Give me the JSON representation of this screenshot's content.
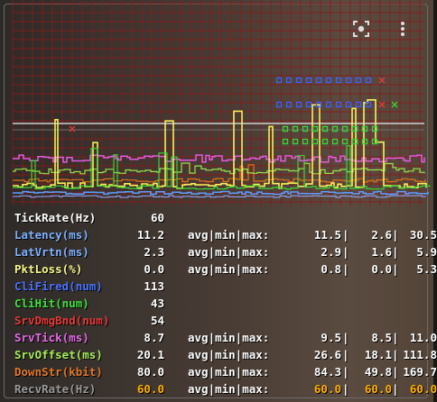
{
  "toolbar": {
    "scan_icon": "lens-scan-icon",
    "menu_icon": "more-vert-icon"
  },
  "graph": {
    "grid_color": "#8b1a1a",
    "series": [
      {
        "name": "tickrate",
        "color": "#f2f2c8"
      },
      {
        "name": "latency",
        "color": "#5aa0ff"
      },
      {
        "name": "pktloss",
        "color": "#f2f25a"
      },
      {
        "name": "srvtick",
        "color": "#e25ae2"
      },
      {
        "name": "srvoffset",
        "color": "#9ae24a"
      },
      {
        "name": "downstr",
        "color": "#e0701a"
      },
      {
        "name": "clihit",
        "color": "#37d637"
      }
    ]
  },
  "stats": [
    {
      "label": "TickRate(Hz)",
      "value": "60",
      "color": "#ffffff",
      "amm": "",
      "avg": "",
      "min": "",
      "max": ""
    },
    {
      "label": "Latency(ms)",
      "value": "11.2",
      "color": "#7fb2ff",
      "amm": "avg|min|max:",
      "avg": "11.5",
      "min": "2.6",
      "max": "30.5"
    },
    {
      "label": "LatVrtn(ms)",
      "value": "2.3",
      "color": "#7fb2ff",
      "amm": "avg|min|max:",
      "avg": "2.9",
      "min": "1.6",
      "max": "5.9"
    },
    {
      "label": "PktLoss(%)",
      "value": "0.0",
      "color": "#f7f78a",
      "amm": "avg|min|max:",
      "avg": "0.8",
      "min": "0.0",
      "max": "5.3"
    },
    {
      "label": "CliFired(num)",
      "value": "113",
      "color": "#4a72ff",
      "amm": "",
      "avg": "",
      "min": "",
      "max": ""
    },
    {
      "label": "CliHit(num)",
      "value": "43",
      "color": "#3fe03f",
      "amm": "",
      "avg": "",
      "min": "",
      "max": ""
    },
    {
      "label": "SrvDmgBnd(num)",
      "value": "54",
      "color": "#e53a3a",
      "amm": "",
      "avg": "",
      "min": "",
      "max": ""
    },
    {
      "label": "SrvTick(ms)",
      "value": "8.7",
      "color": "#e86ae8",
      "amm": "avg|min|max:",
      "avg": "9.5",
      "min": "8.5",
      "max": "11.0"
    },
    {
      "label": "SrvOffset(ms)",
      "value": "20.1",
      "color": "#a6ec5a",
      "amm": "avg|min|max:",
      "avg": "26.6",
      "min": "18.1",
      "max": "111.8"
    },
    {
      "label": "DownStr(kbit)",
      "value": "80.0",
      "color": "#e0782a",
      "amm": "avg|min|max:",
      "avg": "84.3",
      "min": "49.8",
      "max": "169.7"
    },
    {
      "label": "RecvRate(Hz)",
      "value": "60.0",
      "color": "#9a9a9a",
      "value_color": "#ffb000",
      "amm": "avg|min|max:",
      "avg": "60.0",
      "min": "60.0",
      "max": "60.0"
    }
  ]
}
